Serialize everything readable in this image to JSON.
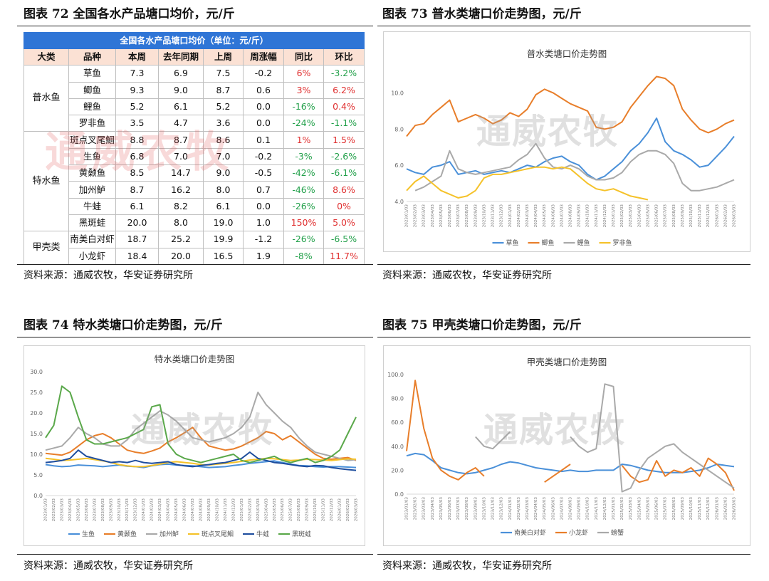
{
  "figures": [
    {
      "label": "图表 72 全国各水产品塘口均价，元/斤"
    },
    {
      "label": "图表 73 普水类塘口价走势图，元/斤"
    },
    {
      "label": "图表 74 特水类塘口价走势图，元/斤"
    },
    {
      "label": "图表 75 甲壳类塘口价走势图，元/斤"
    }
  ],
  "source": "资料来源：通威农牧，华安证券研究所",
  "watermark": "通威农牧",
  "table": {
    "caption": "全国各水产品塘口均价（单位：元/斤）",
    "headers": [
      "大类",
      "品种",
      "本周",
      "去年同期",
      "上周",
      "周涨幅",
      "同比",
      "环比"
    ],
    "groups": [
      {
        "category": "普水鱼",
        "rows": [
          {
            "name": "草鱼",
            "cur": "7.3",
            "ly": "6.9",
            "prev": "7.5",
            "wk": "-0.2",
            "yoy": "6%",
            "mom": "-3.2%"
          },
          {
            "name": "鲫鱼",
            "cur": "9.3",
            "ly": "9.0",
            "prev": "8.7",
            "wk": "0.6",
            "yoy": "3%",
            "mom": "6.2%"
          },
          {
            "name": "鲤鱼",
            "cur": "5.2",
            "ly": "6.1",
            "prev": "5.2",
            "wk": "0.0",
            "yoy": "-16%",
            "mom": "0.4%"
          },
          {
            "name": "罗非鱼",
            "cur": "3.5",
            "ly": "4.7",
            "prev": "3.6",
            "wk": "0.0",
            "yoy": "-24%",
            "mom": "-1.1%"
          }
        ]
      },
      {
        "category": "特水鱼",
        "rows": [
          {
            "name": "斑点叉尾鮰",
            "cur": "8.8",
            "ly": "8.7",
            "prev": "8.6",
            "wk": "0.1",
            "yoy": "1%",
            "mom": "1.5%"
          },
          {
            "name": "生鱼",
            "cur": "6.8",
            "ly": "7.0",
            "prev": "7.0",
            "wk": "-0.2",
            "yoy": "-3%",
            "mom": "-2.6%"
          },
          {
            "name": "黄颡鱼",
            "cur": "8.5",
            "ly": "14.7",
            "prev": "9.0",
            "wk": "-0.5",
            "yoy": "-42%",
            "mom": "-6.1%"
          },
          {
            "name": "加州鲈",
            "cur": "8.7",
            "ly": "16.2",
            "prev": "8.0",
            "wk": "0.7",
            "yoy": "-46%",
            "mom": "8.6%"
          },
          {
            "name": "牛蛙",
            "cur": "6.1",
            "ly": "8.2",
            "prev": "6.1",
            "wk": "0.0",
            "yoy": "-26%",
            "mom": "0%"
          },
          {
            "name": "黑斑蛙",
            "cur": "20.0",
            "ly": "8.0",
            "prev": "19.0",
            "wk": "1.0",
            "yoy": "150%",
            "mom": "5.0%"
          }
        ]
      },
      {
        "category": "甲壳类",
        "rows": [
          {
            "name": "南美白对虾",
            "cur": "18.7",
            "ly": "25.2",
            "prev": "19.9",
            "wk": "-1.2",
            "yoy": "-26%",
            "mom": "-6.5%"
          },
          {
            "name": "小龙虾",
            "cur": "18.4",
            "ly": "20.0",
            "prev": "16.5",
            "wk": "1.9",
            "yoy": "-8%",
            "mom": "11.7%"
          }
        ]
      }
    ],
    "colors": {
      "positive": "#e03030",
      "negative": "#22a04a",
      "caption_bg": "#2f75d6",
      "header_bg": "#fbe1d4"
    }
  },
  "chart_data": [
    {
      "type": "line",
      "title": "普水类塘口价走势图",
      "ylim": [
        4.0,
        11.0
      ],
      "yticks": [
        "4.0",
        "6.0",
        "8.0",
        "10.0"
      ],
      "yticks_values": [
        4.0,
        6.0,
        8.0,
        10.0
      ],
      "x": [
        "2023/01/03",
        "2023/02/03",
        "2023/03/03",
        "2023/04/03",
        "2023/05/03",
        "2023/06/03",
        "2023/07/03",
        "2023/08/03",
        "2023/09/03",
        "2023/10/03",
        "2023/11/03",
        "2023/12/03",
        "2024/01/03",
        "2024/02/03",
        "2024/03/03",
        "2024/04/03",
        "2024/05/03",
        "2024/06/03",
        "2024/07/03",
        "2024/08/03",
        "2024/09/03",
        "2024/10/03",
        "2024/11/03",
        "2024/12/03",
        "2025/01/03",
        "2025/02/03",
        "2025/03/03",
        "2025/04/03",
        "2025/05/03",
        "2025/06/03",
        "2025/07/03",
        "2025/08/03",
        "2025/09/03",
        "2025/10/03",
        "2025/11/03",
        "2025/12/03",
        "2026/01/03",
        "2026/02/03",
        "2026/03/03"
      ],
      "series": [
        {
          "name": "草鱼",
          "color": "#4a90d9",
          "values": [
            5.8,
            5.6,
            5.5,
            5.9,
            6.0,
            6.2,
            5.5,
            5.6,
            5.7,
            5.5,
            5.6,
            5.7,
            5.6,
            5.8,
            6.0,
            5.9,
            6.2,
            6.4,
            6.5,
            6.2,
            6.0,
            5.5,
            5.2,
            5.4,
            5.8,
            6.2,
            6.8,
            7.2,
            7.8,
            8.6,
            7.3,
            6.8,
            6.6,
            6.3,
            5.9,
            6.0,
            6.5,
            7.0,
            7.6
          ]
        },
        {
          "name": "鲫鱼",
          "color": "#e87e2a",
          "values": [
            7.6,
            8.2,
            8.3,
            8.8,
            9.2,
            9.6,
            8.4,
            8.6,
            8.8,
            8.6,
            8.3,
            8.5,
            8.9,
            8.7,
            9.1,
            9.9,
            10.2,
            10.0,
            9.7,
            9.4,
            9.2,
            9.0,
            8.1,
            8.0,
            8.1,
            8.4,
            9.2,
            9.8,
            10.4,
            10.9,
            10.8,
            10.4,
            9.1,
            8.5,
            8.0,
            7.8,
            8.0,
            8.3,
            8.5
          ]
        },
        {
          "name": "鲤鱼",
          "color": "#a9a9a9",
          "values": [
            null,
            4.6,
            4.8,
            5.1,
            5.4,
            6.8,
            5.8,
            5.6,
            5.5,
            5.6,
            5.7,
            5.8,
            5.9,
            6.3,
            6.6,
            7.2,
            6.4,
            5.9,
            5.8,
            6.0,
            5.8,
            5.4,
            5.2,
            5.2,
            5.3,
            5.6,
            6.2,
            6.6,
            6.8,
            6.8,
            6.6,
            6.1,
            5.0,
            4.6,
            4.6,
            4.7,
            4.8,
            5.0,
            5.2
          ]
        },
        {
          "name": "罗非鱼",
          "color": "#f5c22a",
          "values": [
            4.6,
            5.1,
            5.4,
            5.0,
            4.6,
            4.4,
            4.2,
            4.3,
            4.6,
            5.3,
            5.5,
            5.5,
            5.6,
            5.7,
            5.8,
            5.9,
            5.9,
            5.8,
            5.9,
            5.8,
            5.4,
            5.0,
            4.7,
            4.6,
            4.7,
            4.5,
            4.3,
            4.2,
            4.1,
            null,
            null,
            null,
            null,
            null,
            null,
            null,
            null,
            null,
            null
          ]
        }
      ]
    },
    {
      "type": "line",
      "title": "特水类塘口价走势图",
      "ylim": [
        0.0,
        30.0
      ],
      "yticks": [
        "0.0",
        "5.0",
        "10.0",
        "15.0",
        "20.0",
        "25.0",
        "30.0"
      ],
      "yticks_values": [
        0,
        5,
        10,
        15,
        20,
        25,
        30
      ],
      "x": [
        "2023/01/03",
        "2023/02/03",
        "2023/03/03",
        "2023/04/03",
        "2023/05/03",
        "2023/06/03",
        "2023/07/03",
        "2023/08/03",
        "2023/09/03",
        "2023/10/03",
        "2023/11/03",
        "2023/12/03",
        "2024/01/03",
        "2024/02/03",
        "2024/03/03",
        "2024/04/03",
        "2024/05/03",
        "2024/06/03",
        "2024/07/03",
        "2024/08/03",
        "2024/09/03",
        "2024/10/03",
        "2024/11/03",
        "2024/12/03",
        "2025/01/03",
        "2025/02/03",
        "2025/03/03",
        "2025/04/03",
        "2025/05/03",
        "2025/06/03",
        "2025/07/03",
        "2025/08/03",
        "2025/09/03",
        "2025/10/03",
        "2025/11/03",
        "2025/12/03",
        "2026/01/03",
        "2026/02/03",
        "2026/03/03"
      ],
      "series": [
        {
          "name": "生鱼",
          "color": "#4a90d9",
          "values": [
            7.5,
            7.2,
            7.0,
            7.1,
            7.4,
            7.3,
            7.2,
            7.0,
            7.2,
            7.4,
            7.1,
            7.0,
            6.8,
            7.2,
            7.5,
            7.6,
            7.4,
            7.3,
            7.2,
            7.0,
            6.8,
            6.9,
            7.0,
            7.3,
            7.5,
            7.8,
            8.0,
            8.2,
            8.4,
            8.0,
            7.6,
            7.3,
            7.2,
            7.0,
            6.9,
            7.0,
            7.0,
            6.9,
            6.8
          ]
        },
        {
          "name": "黄颡鱼",
          "color": "#e87e2a",
          "values": [
            10.2,
            10.0,
            9.8,
            10.5,
            12.0,
            13.5,
            14.5,
            15.0,
            14.0,
            12.5,
            11.0,
            10.5,
            10.2,
            10.8,
            11.5,
            13.0,
            14.0,
            15.2,
            16.5,
            14.0,
            12.0,
            11.5,
            11.0,
            11.3,
            12.0,
            13.0,
            14.0,
            15.5,
            15.0,
            13.5,
            14.5,
            13.0,
            11.5,
            10.0,
            9.0,
            8.8,
            9.0,
            9.2,
            8.5
          ]
        },
        {
          "name": "加州鲈",
          "color": "#a9a9a9",
          "values": [
            11.0,
            11.5,
            12.0,
            14.0,
            16.5,
            15.0,
            14.0,
            12.5,
            12.0,
            12.0,
            13.5,
            16.0,
            17.5,
            19.0,
            20.5,
            19.5,
            18.0,
            16.0,
            14.0,
            13.5,
            13.0,
            13.5,
            14.0,
            15.0,
            16.5,
            19.0,
            25.0,
            22.0,
            20.0,
            18.0,
            16.5,
            14.0,
            12.0,
            10.5,
            10.0,
            9.5,
            9.0,
            8.5,
            8.7
          ]
        },
        {
          "name": "斑点叉尾鮰",
          "color": "#f5c22a",
          "values": [
            9.0,
            8.8,
            8.5,
            8.6,
            8.8,
            9.0,
            8.7,
            8.4,
            8.0,
            7.5,
            7.2,
            7.0,
            7.0,
            7.3,
            7.6,
            8.0,
            8.2,
            8.0,
            7.8,
            7.5,
            7.4,
            7.6,
            7.8,
            8.0,
            8.3,
            8.6,
            8.8,
            9.0,
            8.9,
            8.7,
            8.5,
            8.6,
            8.8,
            8.7,
            8.6,
            8.5,
            8.7,
            8.9,
            8.8
          ]
        },
        {
          "name": "牛蛙",
          "color": "#1f4e9e",
          "values": [
            8.0,
            8.2,
            8.5,
            9.0,
            11.0,
            9.5,
            9.0,
            8.5,
            8.0,
            8.2,
            8.0,
            8.5,
            8.0,
            7.8,
            8.0,
            8.2,
            7.5,
            7.2,
            7.0,
            7.3,
            7.5,
            7.8,
            8.0,
            8.5,
            9.0,
            10.5,
            9.0,
            8.5,
            8.0,
            7.8,
            7.5,
            7.2,
            7.0,
            7.3,
            7.2,
            6.8,
            6.5,
            6.3,
            6.1
          ]
        },
        {
          "name": "黑斑蛙",
          "color": "#5aa84a",
          "values": [
            14.0,
            17.0,
            26.5,
            25.0,
            19.0,
            13.5,
            12.5,
            12.5,
            13.0,
            13.5,
            14.0,
            15.0,
            16.0,
            21.5,
            22.0,
            12.5,
            10.0,
            9.0,
            8.5,
            8.0,
            8.5,
            9.0,
            9.5,
            10.0,
            8.5,
            8.0,
            8.5,
            9.0,
            9.5,
            8.5,
            8.0,
            8.5,
            9.0,
            8.0,
            8.5,
            9.5,
            11.0,
            15.0,
            19.0
          ]
        }
      ]
    },
    {
      "type": "line",
      "title": "甲壳类塘口价走势图",
      "ylim": [
        0.0,
        100.0
      ],
      "yticks": [
        "0.0",
        "20.0",
        "40.0",
        "60.0",
        "80.0",
        "100.0"
      ],
      "yticks_values": [
        0,
        20,
        40,
        60,
        80,
        100
      ],
      "x": [
        "2023/01/03",
        "2023/02/03",
        "2023/03/03",
        "2023/04/03",
        "2023/05/03",
        "2023/06/03",
        "2023/07/03",
        "2023/08/03",
        "2023/09/03",
        "2023/10/03",
        "2023/11/03",
        "2023/12/03",
        "2024/01/03",
        "2024/02/03",
        "2024/03/03",
        "2024/04/03",
        "2024/05/03",
        "2024/06/03",
        "2024/07/03",
        "2024/08/03",
        "2024/09/03",
        "2024/10/03",
        "2024/11/03",
        "2024/12/03",
        "2025/01/03",
        "2025/02/03",
        "2025/03/03",
        "2025/04/03",
        "2025/05/03",
        "2025/06/03",
        "2025/07/03",
        "2025/08/03",
        "2025/09/03",
        "2025/10/03",
        "2025/11/03",
        "2025/12/03",
        "2026/01/03",
        "2026/02/03",
        "2026/03/03"
      ],
      "series": [
        {
          "name": "南美白对虾",
          "color": "#4a90d9",
          "values": [
            32,
            34,
            33,
            28,
            22,
            20,
            18,
            17,
            18,
            20,
            22,
            25,
            27,
            26,
            24,
            22,
            21,
            20,
            19,
            20,
            19,
            19,
            20,
            20,
            20,
            25,
            24,
            22,
            20,
            19,
            18,
            18,
            18,
            19,
            20,
            22,
            25,
            24,
            23
          ]
        },
        {
          "name": "小龙虾",
          "color": "#e87e2a",
          "values": [
            36,
            95,
            55,
            30,
            20,
            15,
            12,
            18,
            22,
            15,
            null,
            null,
            null,
            null,
            null,
            null,
            10,
            15,
            20,
            25,
            null,
            null,
            null,
            null,
            null,
            24,
            15,
            10,
            12,
            28,
            15,
            20,
            18,
            22,
            15,
            30,
            25,
            18,
            3
          ]
        },
        {
          "name": "螃蟹",
          "color": "#a9a9a9",
          "values": [
            null,
            null,
            null,
            null,
            null,
            null,
            null,
            null,
            48,
            40,
            38,
            45,
            52,
            null,
            null,
            null,
            null,
            null,
            null,
            48,
            40,
            35,
            38,
            92,
            90,
            2,
            5,
            20,
            30,
            35,
            40,
            42,
            35,
            30,
            25,
            20,
            15,
            10,
            5
          ]
        }
      ]
    }
  ]
}
